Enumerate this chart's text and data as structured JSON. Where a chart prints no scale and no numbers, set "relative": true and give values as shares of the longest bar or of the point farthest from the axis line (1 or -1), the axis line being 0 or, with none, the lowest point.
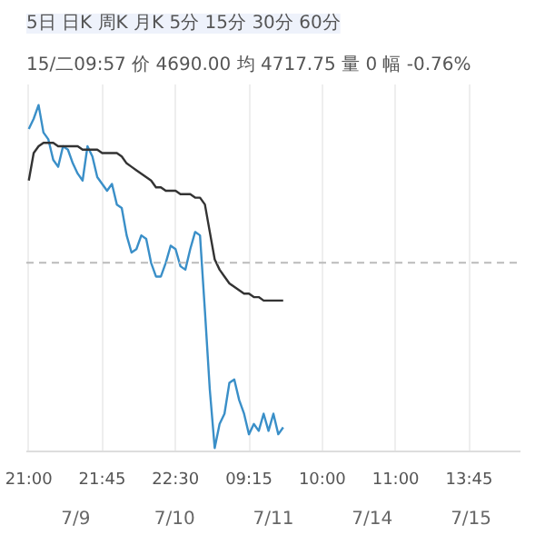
{
  "chart_data": {
    "type": "line",
    "relative": true,
    "grid": "x",
    "marker": "none",
    "line_style": "solid",
    "annotations": [
      "5日 日K 周K 月K 5分 15分 30分 60分",
      "15/二09:57 价 4690.00 均 4717.75 量 0 幅 -0.76%",
      "7/9",
      "7/10",
      "7/11",
      "7/14",
      "7/15"
    ],
    "categories": [
      "21:00",
      null,
      null,
      null,
      null,
      null,
      null,
      null,
      null,
      null,
      null,
      null,
      null,
      null,
      null,
      "21:45",
      null,
      null,
      null,
      null,
      null,
      null,
      null,
      null,
      null,
      null,
      null,
      null,
      null,
      null,
      "22:30",
      null,
      null,
      null,
      null,
      null,
      null,
      null,
      null,
      null,
      null,
      null,
      null,
      null,
      null,
      "09:15",
      null,
      null,
      null,
      null,
      null,
      null,
      null,
      null,
      null,
      null,
      null,
      null,
      null,
      null,
      "10:00",
      null,
      null,
      null,
      null,
      null,
      null,
      null,
      null,
      null,
      null,
      null,
      null,
      null,
      null,
      "11:00",
      null,
      null,
      null,
      null,
      null,
      null,
      null,
      null,
      null,
      null,
      null,
      null,
      null,
      null,
      "13:45",
      null,
      null,
      null,
      null,
      null,
      null,
      null,
      null,
      null,
      null
    ],
    "ref_lines": [
      {
        "axis": "y",
        "value": 0.54,
        "label": null,
        "color": "#bbbbbb",
        "line_style": "dashed"
      }
    ],
    "series": [
      {
        "color": "#3a8fc8",
        "values": [
          0.93,
          0.96,
          1.0,
          0.92,
          0.9,
          0.84,
          0.82,
          0.88,
          0.87,
          0.83,
          0.8,
          0.78,
          0.88,
          0.85,
          0.79,
          0.77,
          0.75,
          0.77,
          0.71,
          0.7,
          0.62,
          0.57,
          0.58,
          0.62,
          0.61,
          0.54,
          0.5,
          0.5,
          0.54,
          0.59,
          0.58,
          0.53,
          0.52,
          0.58,
          0.63,
          0.62,
          0.4,
          0.17,
          0,
          0.07,
          0.1,
          0.19,
          0.2,
          0.14,
          0.1,
          0.04,
          0.07,
          0.05,
          0.1,
          0.05,
          0.1,
          0.04,
          0.06,
          null,
          null,
          null,
          null,
          null,
          null,
          null,
          null,
          null,
          null,
          null,
          null,
          null,
          null,
          null,
          null,
          null,
          null,
          null,
          null,
          null,
          null,
          null,
          null,
          null,
          null,
          null,
          null,
          null,
          null,
          null,
          null,
          null,
          null,
          null,
          null,
          null,
          null,
          null,
          null,
          null,
          null,
          null,
          null,
          null,
          null,
          null,
          null
        ]
      },
      {
        "color": "#333333",
        "values": [
          0.78,
          0.86,
          0.88,
          0.89,
          0.89,
          0.89,
          0.88,
          0.88,
          0.88,
          0.88,
          0.88,
          0.87,
          0.87,
          0.87,
          0.87,
          0.86,
          0.86,
          0.86,
          0.86,
          0.85,
          0.83,
          0.82,
          0.81,
          0.8,
          0.79,
          0.78,
          0.76,
          0.76,
          0.75,
          0.75,
          0.75,
          0.74,
          0.74,
          0.74,
          0.73,
          0.73,
          0.71,
          0.63,
          0.55,
          0.52,
          0.5,
          0.48,
          0.47,
          0.46,
          0.45,
          0.45,
          0.44,
          0.44,
          0.43,
          0.43,
          0.43,
          0.43,
          0.43,
          null,
          null,
          null,
          null,
          null,
          null,
          null,
          null,
          null,
          null,
          null,
          null,
          null,
          null,
          null,
          null,
          null,
          null,
          null,
          null,
          null,
          null,
          null,
          null,
          null,
          null,
          null,
          null,
          null,
          null,
          null,
          null,
          null,
          null,
          null,
          null,
          null,
          null,
          null,
          null,
          null,
          null,
          null,
          null,
          null,
          null,
          null,
          null
        ]
      }
    ]
  }
}
